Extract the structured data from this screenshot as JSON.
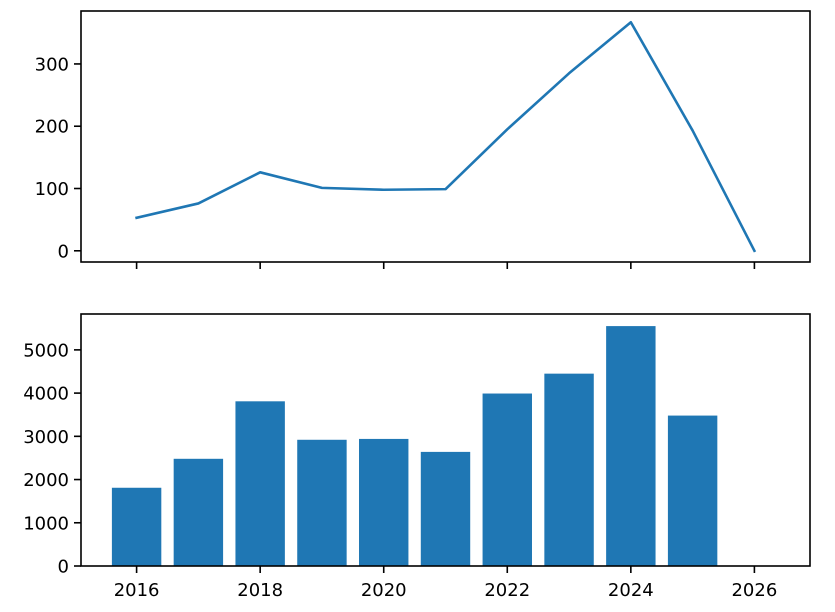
{
  "chart_data": [
    {
      "type": "line",
      "title": "",
      "xlabel": "",
      "ylabel": "",
      "x": [
        2016,
        2017,
        2018,
        2019,
        2020,
        2021,
        2022,
        2023,
        2024,
        2025,
        2026
      ],
      "series": [
        {
          "values": [
            53,
            76,
            126,
            101,
            98,
            99,
            195,
            285,
            367,
            193,
            0
          ]
        }
      ],
      "xlim": [
        2015.1,
        2026.9
      ],
      "ylim": [
        -18,
        385
      ],
      "xticks": [
        2016,
        2018,
        2020,
        2022,
        2024,
        2026
      ],
      "yticks": [
        0,
        100,
        200,
        300
      ],
      "xtick_labels_visible": false,
      "grid": false,
      "color": "#1f77b4"
    },
    {
      "type": "bar",
      "title": "",
      "xlabel": "",
      "ylabel": "",
      "x": [
        2016,
        2017,
        2018,
        2019,
        2020,
        2021,
        2022,
        2023,
        2024,
        2025,
        2026
      ],
      "series": [
        {
          "values": [
            1810,
            2480,
            3810,
            2920,
            2940,
            2640,
            3990,
            4450,
            5550,
            3480,
            0
          ]
        }
      ],
      "xlim": [
        2015.1,
        2026.9
      ],
      "ylim": [
        0,
        5830
      ],
      "xticks": [
        2016,
        2018,
        2020,
        2022,
        2024,
        2026
      ],
      "yticks": [
        0,
        1000,
        2000,
        3000,
        4000,
        5000
      ],
      "bar_width": 0.8,
      "grid": false,
      "color": "#1f77b4"
    }
  ]
}
